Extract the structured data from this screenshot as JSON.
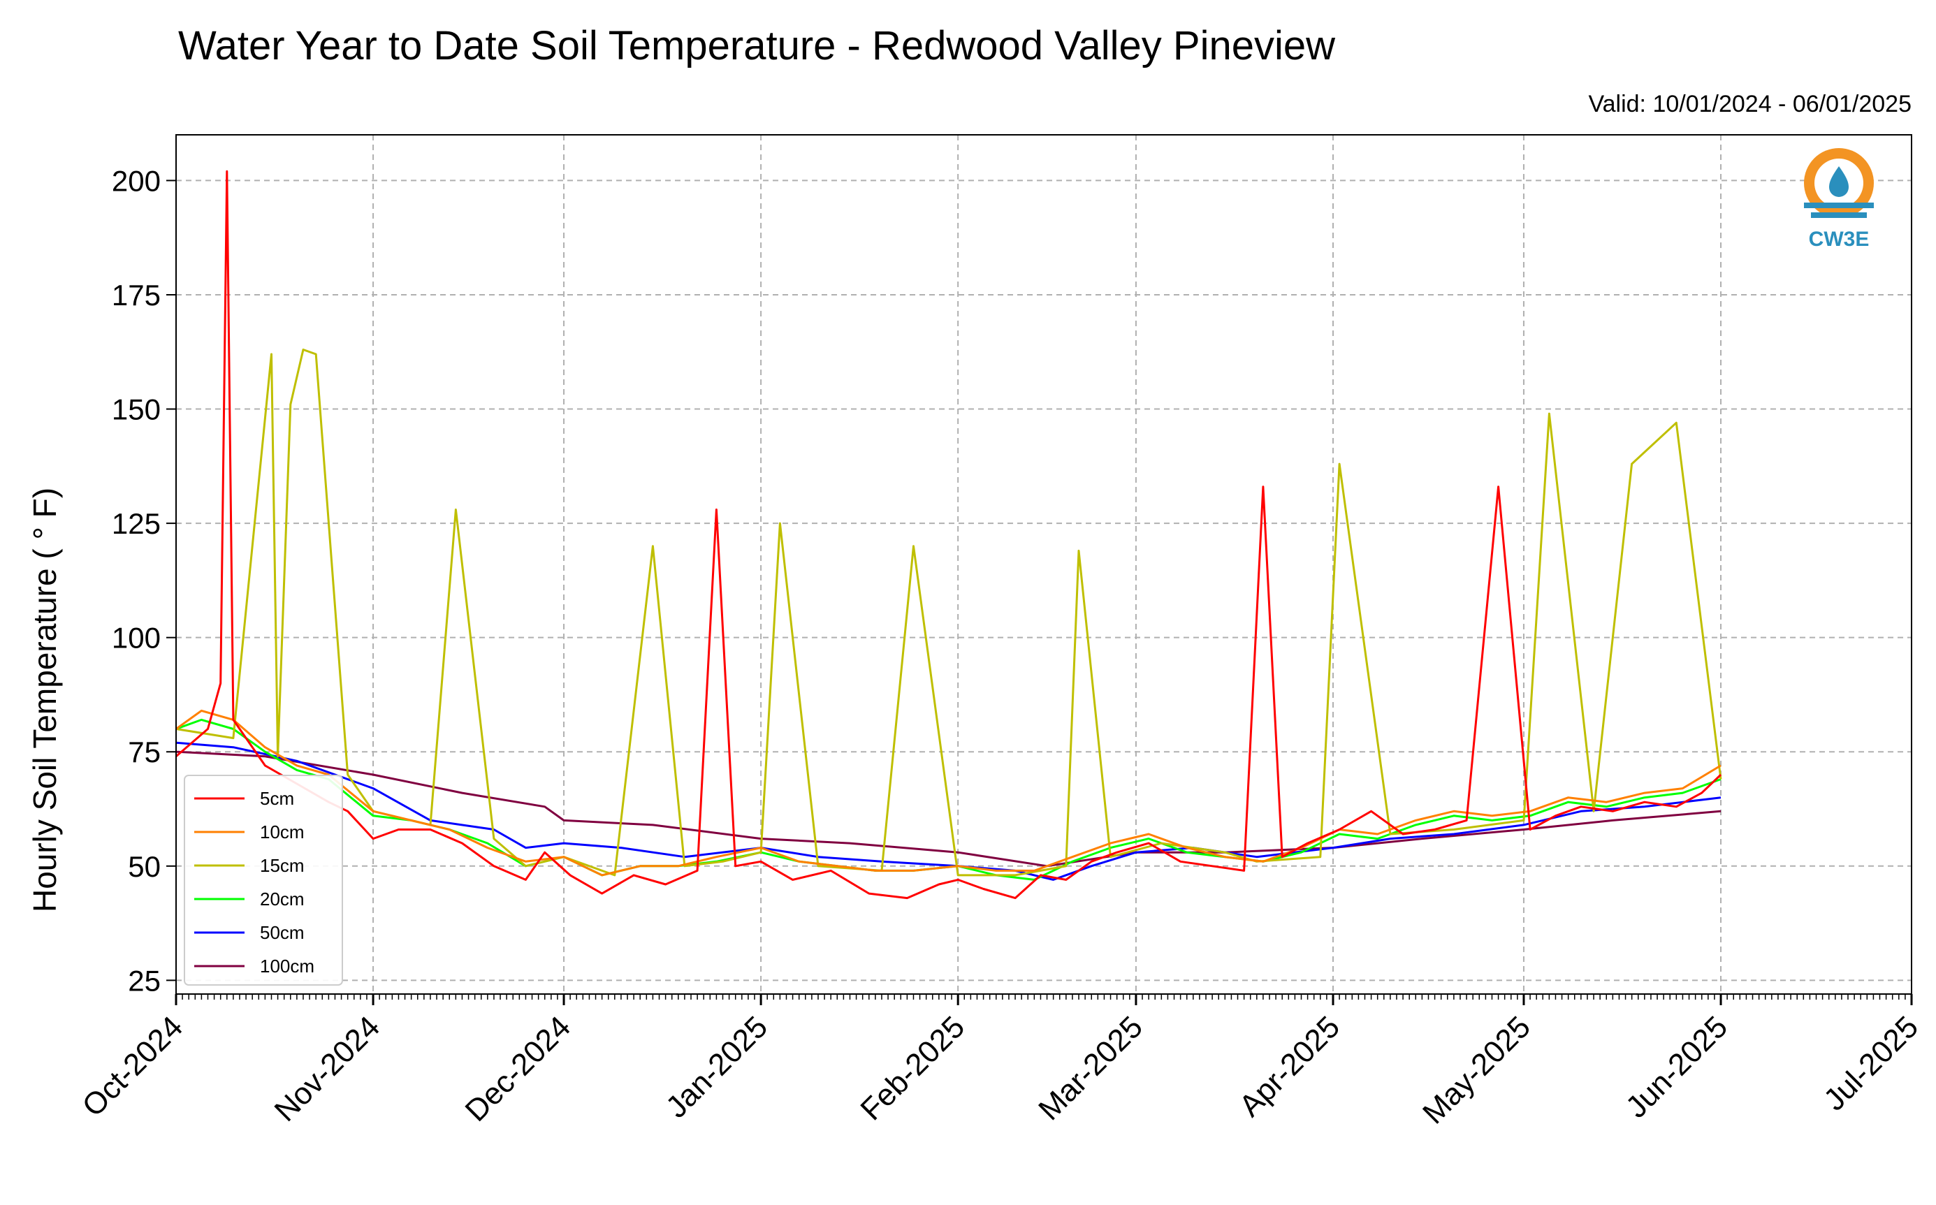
{
  "chart_data": {
    "type": "line",
    "title": "Water Year to Date Soil Temperature - Redwood Valley Pineview",
    "subtitle": "Valid: 10/01/2024 - 06/01/2025",
    "xlabel": "",
    "ylabel": "Hourly Soil Temperature ( ° F)",
    "ylim": [
      22,
      210
    ],
    "xlim": [
      "2024-10-01",
      "2025-07-01"
    ],
    "y_ticks": [
      25,
      50,
      75,
      100,
      125,
      150,
      175,
      200
    ],
    "x_ticks": [
      "Oct-2024",
      "Nov-2024",
      "Dec-2024",
      "Jan-2025",
      "Feb-2025",
      "Mar-2025",
      "Apr-2025",
      "May-2025",
      "Jun-2025",
      "Jul-2025"
    ],
    "grid": true,
    "legend_position": "lower-left",
    "series": [
      {
        "name": "5cm",
        "color": "#ff0000",
        "x": [
          "2024-10-01",
          "2024-10-06",
          "2024-10-08",
          "2024-10-09",
          "2024-10-10",
          "2024-10-15",
          "2024-10-20",
          "2024-10-25",
          "2024-10-28",
          "2024-11-01",
          "2024-11-05",
          "2024-11-10",
          "2024-11-15",
          "2024-11-20",
          "2024-11-25",
          "2024-11-28",
          "2024-12-02",
          "2024-12-07",
          "2024-12-12",
          "2024-12-17",
          "2024-12-22",
          "2024-12-25",
          "2024-12-28",
          "2025-01-01",
          "2025-01-06",
          "2025-01-12",
          "2025-01-18",
          "2025-01-24",
          "2025-01-29",
          "2025-02-01",
          "2025-02-05",
          "2025-02-10",
          "2025-02-14",
          "2025-02-18",
          "2025-02-22",
          "2025-02-26",
          "2025-03-03",
          "2025-03-08",
          "2025-03-13",
          "2025-03-18",
          "2025-03-21",
          "2025-03-24",
          "2025-03-28",
          "2025-04-02",
          "2025-04-07",
          "2025-04-12",
          "2025-04-17",
          "2025-04-22",
          "2025-04-27",
          "2025-05-02",
          "2025-05-06",
          "2025-05-10",
          "2025-05-15",
          "2025-05-20",
          "2025-05-25",
          "2025-05-29",
          "2025-06-01"
        ],
        "y": [
          74,
          80,
          90,
          202,
          82,
          72,
          68,
          64,
          62,
          56,
          58,
          58,
          55,
          50,
          47,
          53,
          48,
          44,
          48,
          46,
          49,
          128,
          50,
          51,
          47,
          49,
          44,
          43,
          46,
          47,
          45,
          43,
          48,
          47,
          51,
          53,
          55,
          51,
          50,
          49,
          133,
          52,
          55,
          58,
          62,
          57,
          58,
          60,
          133,
          58,
          61,
          63,
          62,
          64,
          63,
          66,
          70
        ]
      },
      {
        "name": "10cm",
        "color": "#ff8000",
        "x": [
          "2024-10-01",
          "2024-10-05",
          "2024-10-10",
          "2024-10-15",
          "2024-10-20",
          "2024-10-25",
          "2024-11-01",
          "2024-11-07",
          "2024-11-13",
          "2024-11-19",
          "2024-11-25",
          "2024-12-01",
          "2024-12-07",
          "2024-12-13",
          "2024-12-19",
          "2024-12-25",
          "2025-01-01",
          "2025-01-07",
          "2025-01-13",
          "2025-01-19",
          "2025-01-25",
          "2025-02-01",
          "2025-02-07",
          "2025-02-13",
          "2025-02-19",
          "2025-02-25",
          "2025-03-03",
          "2025-03-09",
          "2025-03-15",
          "2025-03-21",
          "2025-03-27",
          "2025-04-02",
          "2025-04-08",
          "2025-04-14",
          "2025-04-20",
          "2025-04-26",
          "2025-05-02",
          "2025-05-08",
          "2025-05-14",
          "2025-05-20",
          "2025-05-26",
          "2025-06-01"
        ],
        "y": [
          80,
          84,
          82,
          76,
          72,
          70,
          62,
          60,
          58,
          54,
          51,
          52,
          48,
          50,
          50,
          52,
          54,
          51,
          50,
          49,
          49,
          50,
          49,
          49,
          52,
          55,
          57,
          54,
          52,
          51,
          54,
          58,
          57,
          60,
          62,
          61,
          62,
          65,
          64,
          66,
          67,
          72
        ]
      },
      {
        "name": "15cm",
        "color": "#bfbf00",
        "x": [
          "2024-10-01",
          "2024-10-10",
          "2024-10-16",
          "2024-10-17",
          "2024-10-19",
          "2024-10-21",
          "2024-10-23",
          "2024-10-28",
          "2024-11-01",
          "2024-11-10",
          "2024-11-14",
          "2024-11-20",
          "2024-11-25",
          "2024-12-01",
          "2024-12-09",
          "2024-12-15",
          "2024-12-20",
          "2024-12-26",
          "2025-01-01",
          "2025-01-04",
          "2025-01-10",
          "2025-01-20",
          "2025-01-25",
          "2025-02-01",
          "2025-02-10",
          "2025-02-18",
          "2025-02-20",
          "2025-02-25",
          "2025-03-05",
          "2025-03-15",
          "2025-03-20",
          "2025-03-30",
          "2025-04-02",
          "2025-04-10",
          "2025-04-20",
          "2025-05-01",
          "2025-05-05",
          "2025-05-12",
          "2025-05-18",
          "2025-05-25",
          "2025-06-01"
        ],
        "y": [
          80,
          78,
          162,
          74,
          151,
          163,
          162,
          70,
          62,
          59,
          128,
          56,
          50,
          52,
          48,
          120,
          50,
          51,
          53,
          125,
          50,
          49,
          120,
          48,
          48,
          50,
          119,
          52,
          55,
          53,
          51,
          52,
          138,
          57,
          58,
          60,
          149,
          62,
          138,
          147,
          69
        ]
      },
      {
        "name": "20cm",
        "color": "#00ff00",
        "x": [
          "2024-10-01",
          "2024-10-05",
          "2024-10-10",
          "2024-10-15",
          "2024-10-20",
          "2024-10-25",
          "2024-11-01",
          "2024-11-07",
          "2024-11-13",
          "2024-11-19",
          "2024-11-25",
          "2024-12-01",
          "2024-12-07",
          "2024-12-13",
          "2024-12-19",
          "2024-12-25",
          "2025-01-01",
          "2025-01-07",
          "2025-01-13",
          "2025-01-19",
          "2025-01-25",
          "2025-02-01",
          "2025-02-07",
          "2025-02-13",
          "2025-02-19",
          "2025-02-25",
          "2025-03-03",
          "2025-03-09",
          "2025-03-15",
          "2025-03-21",
          "2025-03-27",
          "2025-04-02",
          "2025-04-08",
          "2025-04-14",
          "2025-04-20",
          "2025-04-26",
          "2025-05-02",
          "2025-05-08",
          "2025-05-14",
          "2025-05-20",
          "2025-05-26",
          "2025-06-01"
        ],
        "y": [
          80,
          82,
          80,
          75,
          71,
          69,
          61,
          60,
          58,
          55,
          50,
          52,
          48,
          50,
          50,
          51,
          53,
          51,
          50,
          49,
          49,
          50,
          48,
          47,
          51,
          54,
          56,
          53,
          52,
          51,
          53,
          57,
          56,
          59,
          61,
          60,
          61,
          64,
          63,
          65,
          66,
          69
        ]
      },
      {
        "name": "50cm",
        "color": "#0000ff",
        "x": [
          "2024-10-01",
          "2024-10-10",
          "2024-10-20",
          "2024-11-01",
          "2024-11-10",
          "2024-11-20",
          "2024-11-25",
          "2024-12-01",
          "2024-12-10",
          "2024-12-20",
          "2025-01-01",
          "2025-01-10",
          "2025-01-20",
          "2025-02-01",
          "2025-02-10",
          "2025-02-16",
          "2025-02-22",
          "2025-03-01",
          "2025-03-10",
          "2025-03-20",
          "2025-04-01",
          "2025-04-10",
          "2025-04-20",
          "2025-05-01",
          "2025-05-10",
          "2025-05-20",
          "2025-06-01"
        ],
        "y": [
          77,
          76,
          73,
          67,
          60,
          58,
          54,
          55,
          54,
          52,
          54,
          52,
          51,
          50,
          49,
          47,
          50,
          53,
          54,
          52,
          54,
          56,
          57,
          59,
          62,
          63,
          65
        ]
      },
      {
        "name": "100cm",
        "color": "#800040",
        "x": [
          "2024-10-01",
          "2024-10-15",
          "2024-11-01",
          "2024-11-15",
          "2024-11-28",
          "2024-12-01",
          "2024-12-15",
          "2025-01-01",
          "2025-01-15",
          "2025-02-01",
          "2025-02-15",
          "2025-03-01",
          "2025-03-15",
          "2025-04-01",
          "2025-04-15",
          "2025-05-01",
          "2025-05-15",
          "2025-06-01"
        ],
        "y": [
          75,
          74,
          70,
          66,
          63,
          60,
          59,
          56,
          55,
          53,
          50,
          53,
          53,
          54,
          56,
          58,
          60,
          62
        ]
      }
    ]
  },
  "logo": {
    "text": "CW3E",
    "colors": {
      "orange": "#f39423",
      "blue": "#2a8fbd"
    }
  }
}
